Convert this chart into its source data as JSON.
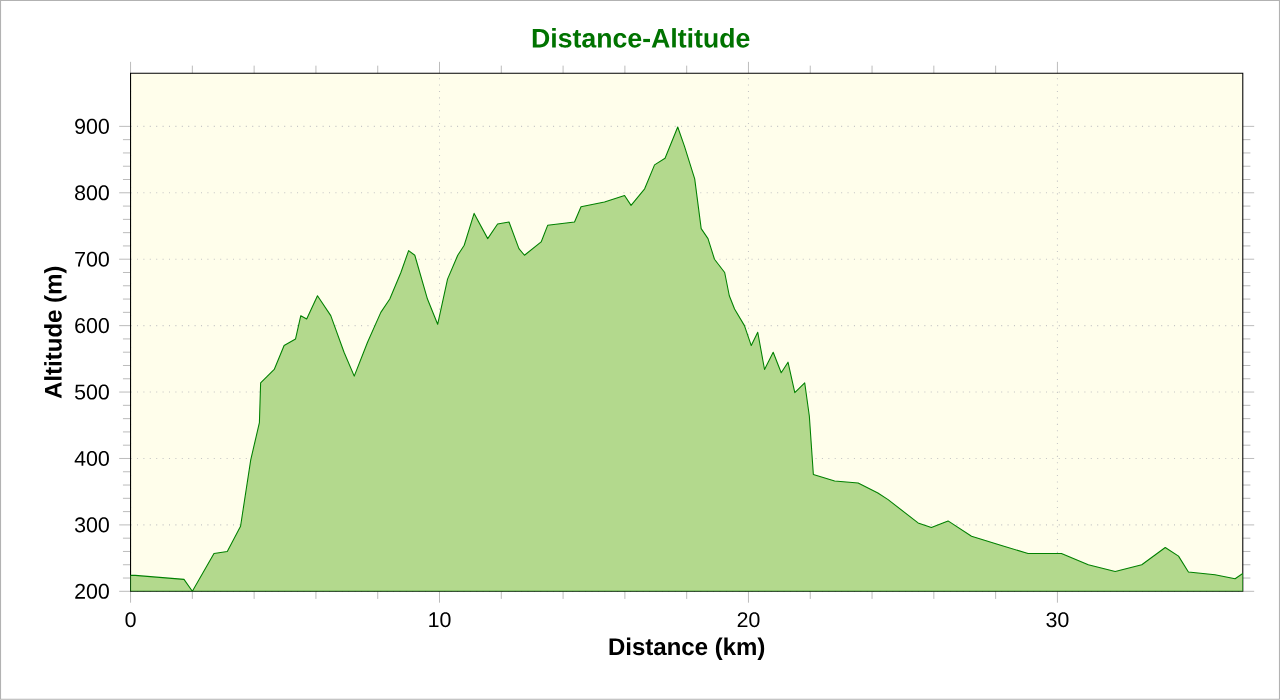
{
  "chart_data": {
    "type": "area",
    "title": "Distance-Altitude",
    "xlabel": "Distance (km)",
    "ylabel": "Altitude (m)",
    "xlim": [
      0,
      36
    ],
    "ylim": [
      200,
      980
    ],
    "xticks": [
      0,
      10,
      20,
      30
    ],
    "yticks": [
      200,
      300,
      400,
      500,
      600,
      700,
      800,
      900
    ],
    "grid": true,
    "series": [
      {
        "color": "#008000",
        "x": [
          0,
          0.15,
          1.73,
          2.0,
          2.7,
          3.13,
          3.56,
          3.89,
          4.17,
          4.21,
          4.65,
          4.97,
          5.34,
          5.51,
          5.7,
          6.05,
          6.48,
          6.91,
          7.24,
          7.67,
          8.1,
          8.39,
          8.75,
          9.0,
          9.2,
          9.61,
          9.94,
          10.26,
          10.59,
          10.8,
          11.12,
          11.56,
          11.88,
          12.25,
          12.57,
          12.75,
          13.29,
          13.5,
          14.37,
          14.58,
          15.34,
          15.99,
          16.2,
          16.64,
          16.96,
          17.3,
          17.71,
          17.93,
          18.26,
          18.47,
          18.69,
          18.9,
          19.23,
          19.38,
          19.55,
          19.87,
          20.09,
          20.3,
          20.52,
          20.8,
          21.06,
          21.28,
          21.5,
          21.82,
          21.97,
          22.1,
          22.79,
          23.55,
          24.19,
          24.52,
          25.49,
          25.92,
          26.46,
          27.22,
          28.19,
          29.05,
          30.13,
          31.0,
          31.87,
          32.73,
          33.49,
          33.92,
          34.24,
          35.1,
          35.75,
          36.0
        ],
        "values": [
          224,
          224,
          218,
          200,
          257,
          260,
          298,
          398,
          454,
          514,
          534,
          570,
          580,
          615,
          610,
          645,
          615,
          560,
          524,
          575,
          620,
          640,
          680,
          713,
          706,
          640,
          602,
          670,
          706,
          721,
          769,
          731,
          753,
          756,
          716,
          706,
          726,
          751,
          756,
          779,
          786,
          796,
          781,
          806,
          842,
          852,
          899,
          870,
          821,
          746,
          731,
          700,
          680,
          645,
          625,
          600,
          570,
          590,
          534,
          560,
          529,
          545,
          499,
          514,
          464,
          376,
          366,
          363,
          348,
          338,
          303,
          296,
          306,
          283,
          269,
          257,
          257,
          240,
          230,
          240,
          266,
          253,
          229,
          225,
          219,
          227
        ]
      }
    ]
  }
}
